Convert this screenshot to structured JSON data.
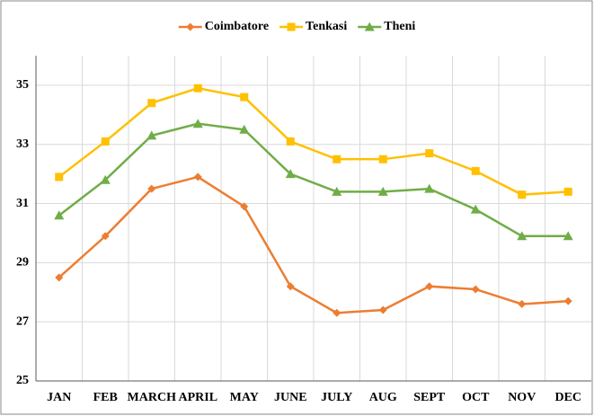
{
  "chart_data": {
    "type": "line",
    "categories": [
      "JAN",
      "FEB",
      "MARCH",
      "APRIL",
      "MAY",
      "JUNE",
      "JULY",
      "AUG",
      "SEPT",
      "OCT",
      "NOV",
      "DEC"
    ],
    "series": [
      {
        "name": "Coimbatore",
        "color": "#ed7d31",
        "marker": "diamond",
        "values": [
          28.5,
          29.9,
          31.5,
          31.9,
          30.9,
          28.2,
          27.3,
          27.4,
          28.2,
          28.1,
          27.6,
          27.7
        ]
      },
      {
        "name": "Tenkasi",
        "color": "#ffc000",
        "marker": "square",
        "values": [
          31.9,
          33.1,
          34.4,
          34.9,
          34.6,
          33.1,
          32.5,
          32.5,
          32.7,
          32.1,
          31.3,
          31.4
        ]
      },
      {
        "name": "Theni",
        "color": "#70ad47",
        "marker": "triangle",
        "values": [
          30.6,
          31.8,
          33.3,
          33.7,
          33.5,
          32.0,
          31.4,
          31.4,
          31.5,
          30.8,
          29.9,
          29.9
        ]
      }
    ],
    "ylim": [
      25,
      36
    ],
    "yticks": [
      25,
      27,
      29,
      31,
      33,
      35
    ],
    "grid": true,
    "legend": "top"
  }
}
